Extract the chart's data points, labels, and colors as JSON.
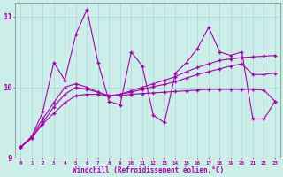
{
  "xlabel": "Windchill (Refroidissement éolien,°C)",
  "background_color": "#cceee8",
  "grid_color": "#aaddda",
  "line_color": "#aa00aa",
  "x": [
    0,
    1,
    2,
    3,
    4,
    5,
    6,
    7,
    8,
    9,
    10,
    11,
    12,
    13,
    14,
    15,
    16,
    17,
    18,
    19,
    20,
    21,
    22,
    23
  ],
  "series1": [
    9.15,
    9.3,
    9.65,
    10.35,
    10.1,
    10.75,
    11.1,
    10.35,
    9.8,
    9.75,
    10.5,
    10.3,
    9.6,
    9.5,
    10.2,
    10.35,
    10.55,
    10.85,
    10.5,
    10.45,
    10.5,
    9.55,
    9.55,
    9.8
  ],
  "series2": [
    9.15,
    9.3,
    9.55,
    9.78,
    10.0,
    10.05,
    10.0,
    9.93,
    9.87,
    9.9,
    9.95,
    10.0,
    10.05,
    10.1,
    10.15,
    10.22,
    10.28,
    10.33,
    10.38,
    10.4,
    10.42,
    10.43,
    10.44,
    10.45
  ],
  "series3": [
    9.15,
    9.28,
    9.5,
    9.72,
    9.9,
    10.0,
    9.97,
    9.93,
    9.88,
    9.9,
    9.93,
    9.97,
    10.01,
    10.04,
    10.08,
    10.13,
    10.18,
    10.22,
    10.26,
    10.3,
    10.33,
    10.18,
    10.18,
    10.2
  ],
  "series4": [
    9.15,
    9.28,
    9.48,
    9.63,
    9.78,
    9.88,
    9.9,
    9.9,
    9.88,
    9.88,
    9.9,
    9.91,
    9.92,
    9.93,
    9.94,
    9.95,
    9.96,
    9.97,
    9.97,
    9.97,
    9.97,
    9.97,
    9.96,
    9.8
  ],
  "ylim": [
    9.0,
    11.2
  ],
  "yticks": [
    9,
    10,
    11
  ],
  "xlim": [
    -0.5,
    23.5
  ],
  "figsize": [
    3.2,
    2.0
  ],
  "dpi": 100
}
